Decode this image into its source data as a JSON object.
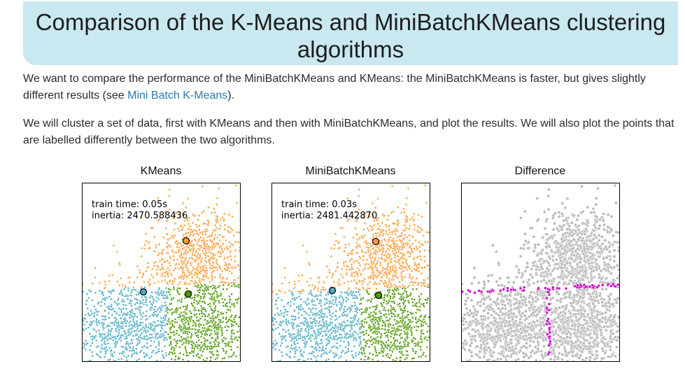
{
  "page": {
    "title": "Comparison of the K-Means and MiniBatchKMeans clustering algorithms",
    "intro": {
      "before_link": "We want to compare the performance of the MiniBatchKMeans and KMeans: the MiniBatchKMeans is faster, but gives slightly different results (see ",
      "link_text": "Mini Batch K-Means",
      "after_link": ")."
    },
    "paragraph2": "We will cluster a set of data, first with KMeans and then with MiniBatchKMeans, and plot the results. We will also plot the points that are labelled differently between the two algorithms."
  },
  "colors": {
    "cluster_blue": "#4eacc5",
    "cluster_orange": "#ff9c34",
    "cluster_green": "#4e9a06",
    "same_label": "#bbbbbb",
    "different_label": "#cc00cc",
    "title_background": "#c9e8f0",
    "link": "#2a7bb0"
  },
  "plots": [
    {
      "title": "KMeans",
      "train_time": "train time: 0.05s",
      "inertia": "inertia: 2470.588436"
    },
    {
      "title": "MiniBatchKMeans",
      "train_time": "train time: 0.03s",
      "inertia": "inertia: 2481.442870"
    },
    {
      "title": "Difference"
    }
  ]
}
